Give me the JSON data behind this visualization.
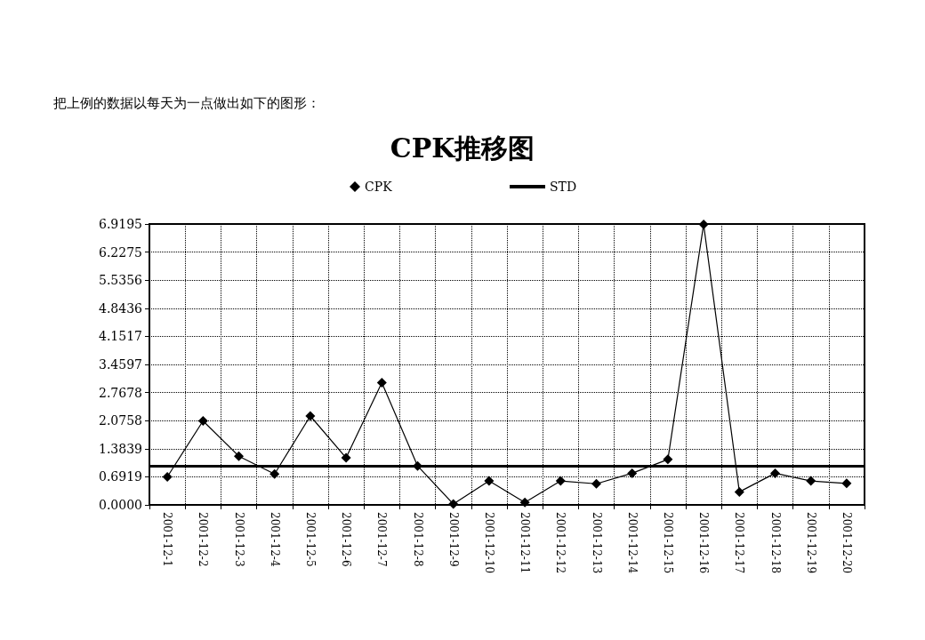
{
  "chart_data": {
    "type": "line",
    "title": "CPK推移图",
    "annotations": [
      "把上例的数据以每天为一点做出如下的图形："
    ],
    "categories": [
      "2001-12-1",
      "2001-12-2",
      "2001-12-3",
      "2001-12-4",
      "2001-12-5",
      "2001-12-6",
      "2001-12-7",
      "2001-12-8",
      "2001-12-9",
      "2001-12-10",
      "2001-12-11",
      "2001-12-12",
      "2001-12-13",
      "2001-12-14",
      "2001-12-15",
      "2001-12-16",
      "2001-12-17",
      "2001-12-18",
      "2001-12-19",
      "2001-12-20"
    ],
    "series": [
      {
        "name": "CPK",
        "color": "#000000",
        "values": [
          0.69,
          2.07,
          1.2,
          0.76,
          2.19,
          1.16,
          3.01,
          0.96,
          0.02,
          0.59,
          0.06,
          0.59,
          0.52,
          0.78,
          1.12,
          6.91,
          0.32,
          0.78,
          0.59,
          0.53
        ]
      }
    ],
    "ref_lines": [
      {
        "axis": "y",
        "value": 0.96,
        "label": "STD",
        "color": "#000000"
      }
    ],
    "ylim": [
      0,
      6.9195
    ],
    "yticks": [
      {
        "value": 0,
        "label": "0.0000"
      },
      0.6919,
      1.3839,
      2.0758,
      2.7678,
      3.4597,
      4.1517,
      4.8436,
      5.5356,
      6.2275,
      6.9195
    ],
    "grid": true,
    "legend": "top",
    "marker": "diamond",
    "line_style": "solid"
  }
}
